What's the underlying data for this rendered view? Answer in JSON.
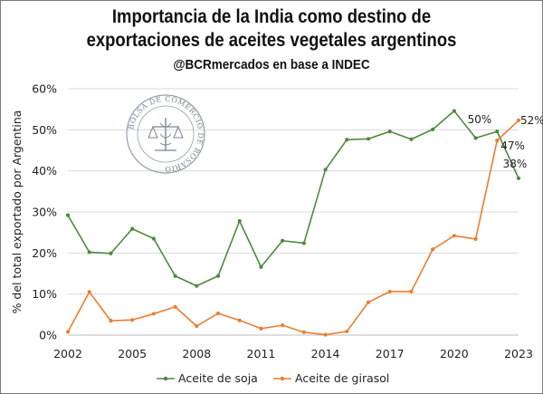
{
  "title_line1": "Importancia de la India como destino de",
  "title_line2": "exportaciones de aceites vegetales argentinos",
  "subtitle": "@BCRmercados en base a INDEC",
  "watermark_text": "BOLSA DE COMERCIO DE ROSARIO",
  "colors": {
    "soja": "#4e8a3e",
    "girasol": "#ed7d31",
    "grid": "#d9d9d9",
    "axis": "#bfbfbf"
  },
  "chart_data": {
    "type": "line",
    "ylabel": "% del total exportado por Argentina",
    "xlabel": "",
    "ylim": [
      0,
      60
    ],
    "y_ticks": [
      "0%",
      "10%",
      "20%",
      "30%",
      "40%",
      "50%",
      "60%"
    ],
    "x": [
      2002,
      2003,
      2004,
      2005,
      2006,
      2007,
      2008,
      2009,
      2010,
      2011,
      2012,
      2013,
      2014,
      2015,
      2016,
      2017,
      2018,
      2019,
      2020,
      2021,
      2022,
      2023
    ],
    "x_tick_labels": [
      "2002",
      "2005",
      "2008",
      "2011",
      "2014",
      "2017",
      "2020",
      "2023"
    ],
    "series": [
      {
        "name": "Aceite de soja",
        "values": [
          29.2,
          20.2,
          19.9,
          25.9,
          23.5,
          14.4,
          12.0,
          14.4,
          27.8,
          16.6,
          23.0,
          22.4,
          40.3,
          47.6,
          47.8,
          49.6,
          47.7,
          50.1,
          54.6,
          48.0,
          49.6,
          38.2
        ]
      },
      {
        "name": "Aceite de girasol",
        "values": [
          0.8,
          10.5,
          3.5,
          3.7,
          5.2,
          6.9,
          2.2,
          5.3,
          3.6,
          1.6,
          2.4,
          0.7,
          0.1,
          0.9,
          8.0,
          10.6,
          10.6,
          20.9,
          24.2,
          23.4,
          47.4,
          52.3
        ]
      }
    ],
    "annotations": [
      {
        "text": "50%",
        "series": "Aceite de soja",
        "x": 2022
      },
      {
        "text": "38%",
        "series": "Aceite de soja",
        "x": 2023
      },
      {
        "text": "47%",
        "series": "Aceite de girasol",
        "x": 2022
      },
      {
        "text": "52%",
        "series": "Aceite de girasol",
        "x": 2023
      }
    ],
    "grid": true,
    "legend_position": "bottom"
  }
}
